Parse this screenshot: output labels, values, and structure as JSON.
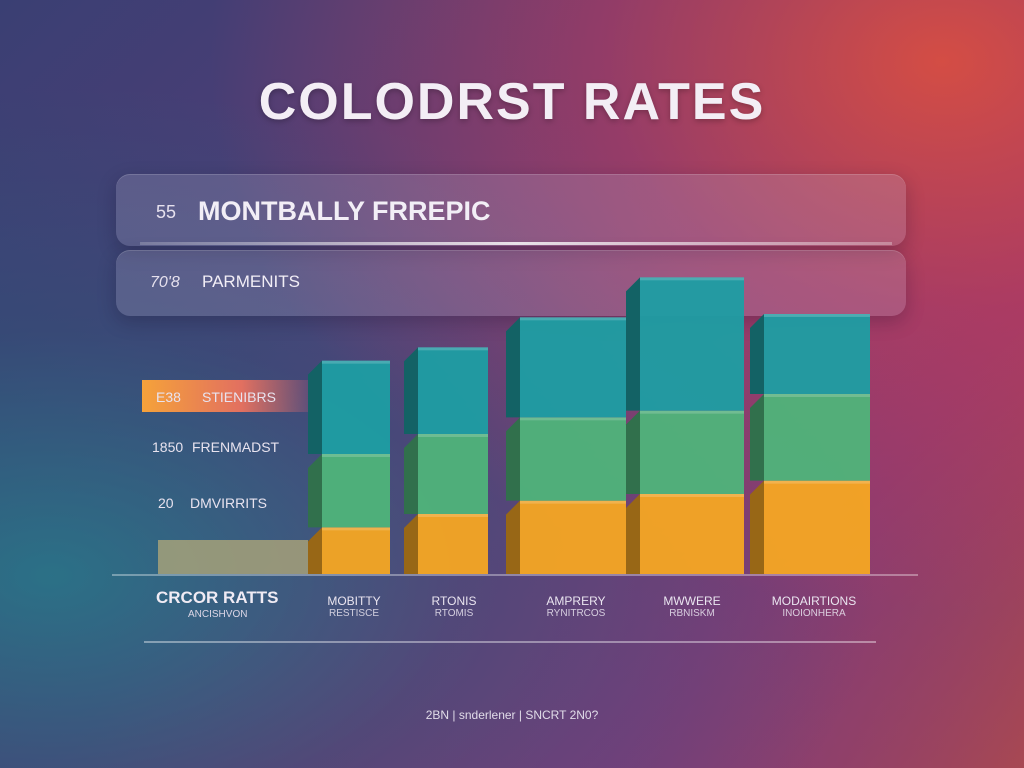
{
  "title": "COLODRST RATES",
  "panels": [
    {
      "number": "55",
      "label": "MONTBALLY FRREPIC"
    },
    {
      "number": "70'8",
      "label": "PARMENITS"
    }
  ],
  "y_labels": [
    {
      "number": "E38",
      "label": "STIENIBRS"
    },
    {
      "number": "1850",
      "label": "FRENMADST"
    },
    {
      "number": "20",
      "label": "DMVIRRITS"
    }
  ],
  "legend": {
    "title": "CRCOR RATTS",
    "subtitle": "ANCISHVON"
  },
  "footer": "2BN | snderlener | SNCRT 2N0?",
  "colors": {
    "teal": "#1e9ea3",
    "green": "#4fb47a",
    "orange": "#f5a623"
  },
  "chart_data": {
    "type": "bar",
    "stacked": true,
    "title": "COLODRST RATES",
    "categories": [
      [
        "MOBITTY",
        "RESTISCE"
      ],
      [
        "RTONIS",
        "RTOMIS"
      ],
      [
        "AMPRERY",
        "RYNITRCOS"
      ],
      [
        "MWWERE",
        "RBNISKM"
      ],
      [
        "MODAIRTIONS",
        "INOIONHERA"
      ]
    ],
    "series": [
      {
        "values": [
          14,
          18,
          22,
          24,
          28
        ],
        "color": "#f5a623"
      },
      {
        "values": [
          22,
          24,
          25,
          25,
          26
        ],
        "color": "#4fb47a"
      },
      {
        "values": [
          28,
          26,
          30,
          40,
          24
        ],
        "color": "#1e9ea3"
      }
    ],
    "ylim": [
      0,
      90
    ],
    "grid": false
  }
}
